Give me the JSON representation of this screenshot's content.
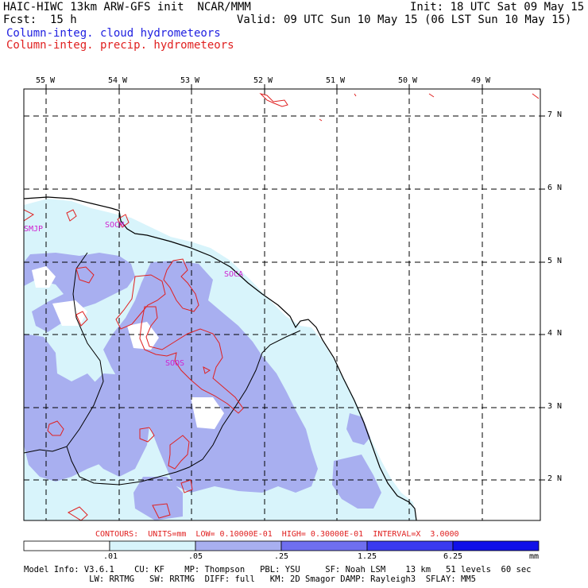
{
  "header": {
    "title": "HAIC-HIWC 13km ARW-GFS init  NCAR/MMM",
    "init": "Init: 18 UTC Sat 09 May 15",
    "fcst": "Fcst:  15 h",
    "valid": "Valid: 09 UTC Sun 10 May 15 (06 LST Sun 10 May 15)",
    "field1": "Column-integ. cloud hydrometeors",
    "field2": "Column-integ. precip. hydrometeors"
  },
  "map": {
    "lon_labels": [
      "55 W",
      "54 W",
      "53 W",
      "52 W",
      "51 W",
      "50 W",
      "49 W"
    ],
    "lat_labels": [
      "7 N",
      "6 N",
      "5 N",
      "4 N",
      "3 N",
      "2 N"
    ],
    "stations": [
      "SMJP",
      "SOCM",
      "SOCA",
      "SOOS"
    ]
  },
  "contours_line": "CONTOURS:  UNITS=mm  LOW= 0.10000E-01  HIGH= 0.30000E-01  INTERVAL=X  3.0000",
  "colorbar": {
    "ticks": [
      ".01",
      ".05",
      ".25",
      "1.25",
      "6.25"
    ],
    "unit": "mm",
    "colors": [
      "#ffffff",
      "#d8f4fb",
      "#a8aff0",
      "#6f6ff0",
      "#3a3af0",
      "#1010e8"
    ]
  },
  "footer": {
    "line1": "Model Info: V3.6.1    CU: KF    MP: Thompson   PBL: YSU     SF: Noah LSM    13 km   51 levels  60 sec",
    "line2": "             LW: RRTMG   SW: RRTMG  DIFF: full   KM: 2D Smagor DAMP: Rayleigh3  SFLAY: MM5"
  },
  "palette": {
    "cloud_light": "#d8f4fb",
    "cloud_mid": "#a8aff0",
    "precip_contour": "#e02020",
    "station_label": "#d020d0"
  }
}
